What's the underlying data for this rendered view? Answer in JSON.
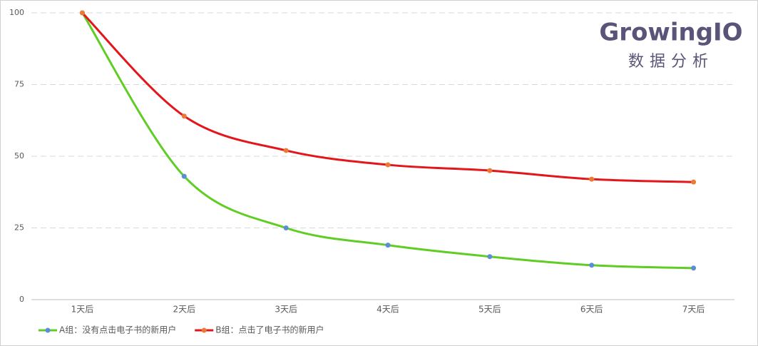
{
  "chart_data": {
    "type": "line",
    "logo": {
      "name": "GrowingIO",
      "subtitle": "数据分析"
    },
    "categories": [
      "1天后",
      "2天后",
      "3天后",
      "4天后",
      "5天后",
      "6天后",
      "7天后"
    ],
    "series": [
      {
        "name": "A组：没有点击电子书的新用户",
        "color": "#5fcd24",
        "marker_color": "#5b8ed6",
        "values": [
          100,
          43,
          25,
          19,
          15,
          12,
          11
        ]
      },
      {
        "name": "B组：点击了电子书的新用户",
        "color": "#e3161b",
        "marker_color": "#ec7a32",
        "values": [
          100,
          64,
          52,
          47,
          45,
          42,
          41
        ]
      }
    ],
    "ylim": [
      0,
      100
    ],
    "yticks": [
      0,
      25,
      50,
      75,
      100
    ],
    "grid": true,
    "legend": "bottom-left",
    "smooth": true
  }
}
